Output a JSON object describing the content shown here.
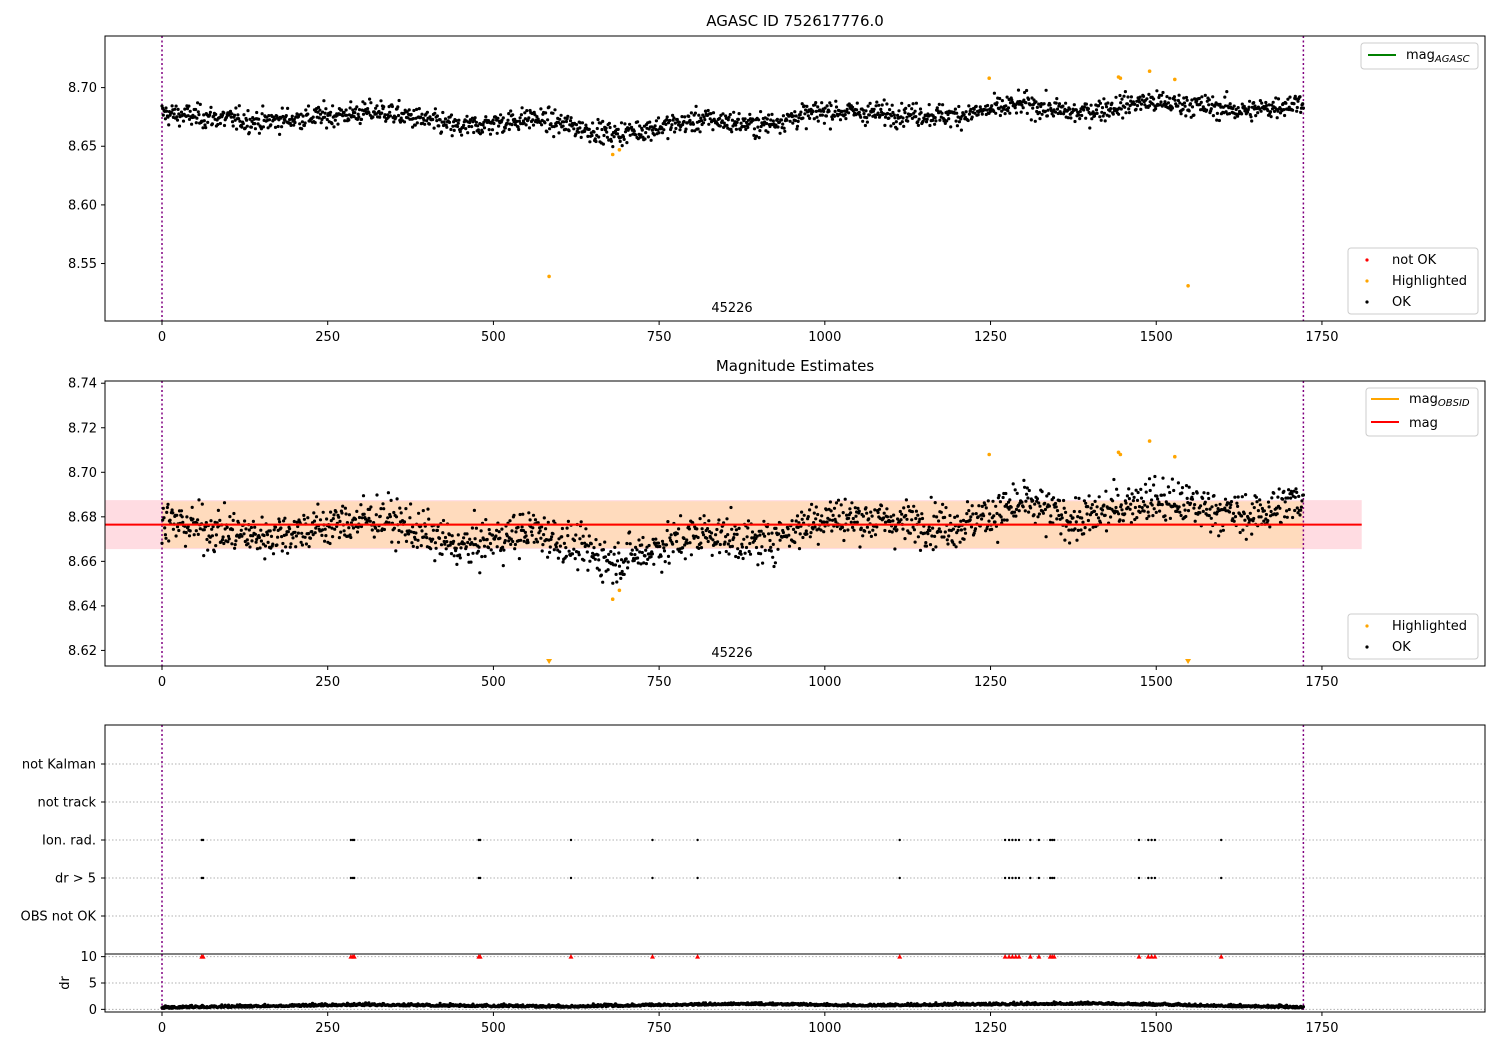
{
  "colors": {
    "ok": "#000000",
    "highlighted": "#ffa500",
    "not_ok": "#ff0000",
    "mag_agasc_line": "#008000",
    "mag_obsid_line": "#ffa500",
    "mag_line": "#ff0000",
    "band_outer": "#ffc0cb",
    "band_inner": "#ffdab9",
    "vline": "#800080",
    "grid": "#b0b0b0"
  },
  "chart_data": [
    {
      "type": "scatter",
      "title": "AGASC ID 752617776.0",
      "xlim": [
        -86,
        1996
      ],
      "ylim": [
        8.501,
        8.744
      ],
      "xticks": [
        "0",
        "250",
        "500",
        "750",
        "1000",
        "1250",
        "1500",
        "1750"
      ],
      "yticks": [
        "8.55",
        "8.60",
        "8.65",
        "8.70"
      ],
      "annotation": "45226",
      "obs_boundaries": [
        0,
        1722
      ],
      "legend_upper": {
        "position": "upper right",
        "entries": [
          {
            "label_main": "mag",
            "label_sub": "AGASC"
          }
        ]
      },
      "legend_lower": {
        "position": "lower right",
        "entries": [
          "not OK",
          "Highlighted",
          "OK"
        ]
      },
      "series": [
        {
          "name": "OK",
          "trend": [
            [
              0,
              8.678
            ],
            [
              150,
              8.671
            ],
            [
              330,
              8.68
            ],
            [
              450,
              8.666
            ],
            [
              560,
              8.674
            ],
            [
              680,
              8.66
            ],
            [
              820,
              8.673
            ],
            [
              900,
              8.668
            ],
            [
              1000,
              8.68
            ],
            [
              1100,
              8.678
            ],
            [
              1200,
              8.676
            ],
            [
              1300,
              8.686
            ],
            [
              1380,
              8.678
            ],
            [
              1480,
              8.688
            ],
            [
              1560,
              8.685
            ],
            [
              1640,
              8.68
            ],
            [
              1722,
              8.688
            ]
          ],
          "spread": 0.009,
          "count": 1700
        },
        {
          "name": "Highlighted",
          "x": [
            584,
            680,
            690,
            1248,
            1443,
            1446,
            1490,
            1528,
            1548
          ],
          "y": [
            8.539,
            8.643,
            8.647,
            8.708,
            8.709,
            8.708,
            8.714,
            8.707,
            8.531
          ]
        }
      ]
    },
    {
      "type": "scatter",
      "title": "Magnitude Estimates",
      "xlim": [
        -86,
        1996
      ],
      "ylim": [
        8.613,
        8.741
      ],
      "xticks": [
        "0",
        "250",
        "500",
        "750",
        "1000",
        "1250",
        "1500",
        "1750"
      ],
      "yticks": [
        "8.62",
        "8.64",
        "8.66",
        "8.68",
        "8.70",
        "8.72",
        "8.74"
      ],
      "annotation": "45226",
      "obs_boundaries": [
        0,
        1722
      ],
      "mag": 8.6765,
      "mag_band_outer": [
        8.6655,
        8.6875
      ],
      "mag_band_inner": [
        8.666,
        8.687
      ],
      "mag_band_x": [
        -86,
        1810
      ],
      "mag_obsid_x": [
        0,
        1722
      ],
      "legend_upper": {
        "position": "upper right",
        "entries": [
          {
            "label_main": "mag",
            "label_sub": "OBSID"
          },
          {
            "label_main": "mag",
            "label_sub": ""
          }
        ]
      },
      "legend_lower": {
        "position": "lower right",
        "entries": [
          "Highlighted",
          "OK"
        ]
      },
      "clipped_markers_x": [
        584,
        1548
      ],
      "series": [
        {
          "name": "OK",
          "trend": [
            [
              0,
              8.678
            ],
            [
              150,
              8.671
            ],
            [
              330,
              8.68
            ],
            [
              450,
              8.666
            ],
            [
              560,
              8.674
            ],
            [
              680,
              8.66
            ],
            [
              820,
              8.673
            ],
            [
              900,
              8.668
            ],
            [
              1000,
              8.68
            ],
            [
              1100,
              8.678
            ],
            [
              1200,
              8.676
            ],
            [
              1300,
              8.686
            ],
            [
              1380,
              8.678
            ],
            [
              1480,
              8.688
            ],
            [
              1560,
              8.685
            ],
            [
              1640,
              8.68
            ],
            [
              1722,
              8.688
            ]
          ],
          "spread": 0.009,
          "count": 1700
        },
        {
          "name": "Highlighted",
          "x": [
            680,
            690,
            1248,
            1443,
            1446,
            1490,
            1528
          ],
          "y": [
            8.643,
            8.647,
            8.708,
            8.709,
            8.708,
            8.714,
            8.707
          ]
        }
      ]
    },
    {
      "type": "scatter",
      "title": "",
      "xlim": [
        -86,
        1996
      ],
      "flag_categories": [
        "not Kalman",
        "not track",
        "Ion. rad.",
        "dr > 5",
        "OBS not OK"
      ],
      "flag_x": {
        "Ion. rad.": [
          60,
          62,
          285,
          288,
          290,
          478,
          480,
          617,
          740,
          808,
          1113,
          1272,
          1278,
          1283,
          1288,
          1293,
          1310,
          1323,
          1340,
          1343,
          1346,
          1474,
          1488,
          1493,
          1498,
          1598
        ],
        "dr > 5": [
          60,
          62,
          285,
          288,
          290,
          478,
          480,
          617,
          740,
          808,
          1113,
          1272,
          1278,
          1283,
          1288,
          1293,
          1310,
          1323,
          1340,
          1343,
          1346,
          1474,
          1488,
          1493,
          1498,
          1598
        ]
      },
      "obs_boundaries": [
        0,
        1722
      ]
    },
    {
      "type": "scatter",
      "title": "",
      "ylabel": "dr",
      "xlim": [
        -86,
        1996
      ],
      "ylim": [
        -0.5,
        10.5
      ],
      "xticks": [
        "0",
        "250",
        "500",
        "750",
        "1000",
        "1250",
        "1500",
        "1750"
      ],
      "yticks": [
        "0",
        "5",
        "10"
      ],
      "obs_boundaries": [
        0,
        1722
      ],
      "capped_value": 10,
      "capped_x": [
        60,
        62,
        285,
        288,
        290,
        478,
        480,
        617,
        740,
        808,
        1113,
        1272,
        1278,
        1283,
        1288,
        1293,
        1310,
        1323,
        1340,
        1343,
        1346,
        1474,
        1488,
        1493,
        1498,
        1598
      ],
      "series": [
        {
          "name": "dr",
          "trend": [
            [
              0,
              0.3
            ],
            [
              300,
              1.2
            ],
            [
              600,
              0.6
            ],
            [
              870,
              1.5
            ],
            [
              1060,
              1.0
            ],
            [
              1400,
              1.6
            ],
            [
              1722,
              0.4
            ]
          ],
          "spread": 0.5,
          "count": 1700
        }
      ]
    }
  ]
}
